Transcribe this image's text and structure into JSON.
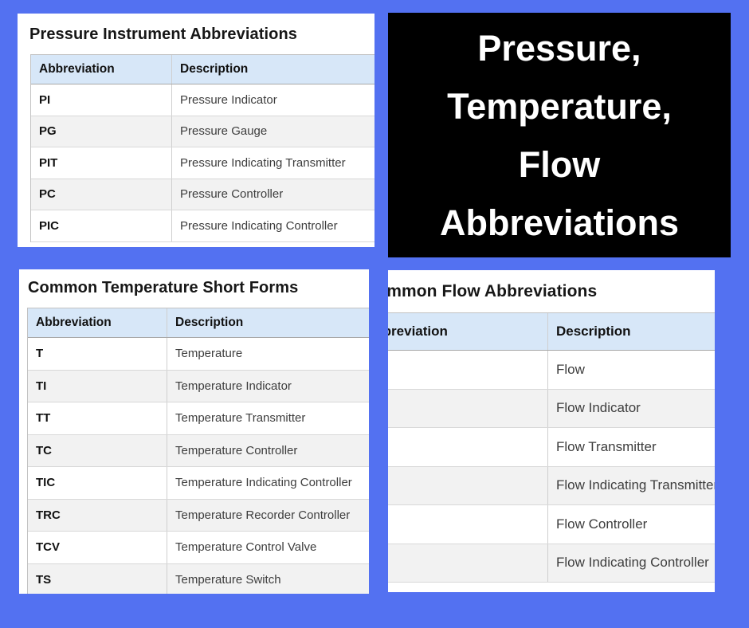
{
  "page": {
    "background_color": "#5371f1"
  },
  "title_card": {
    "background_color": "#000000",
    "text_color": "#ffffff",
    "lines": [
      "Pressure,",
      "Temperature,",
      "Flow",
      "Abbreviations"
    ]
  },
  "pressure_table": {
    "title": "Pressure Instrument Abbreviations",
    "columns": [
      "Abbreviation",
      "Description"
    ],
    "rows": [
      [
        "PI",
        "Pressure Indicator"
      ],
      [
        "PG",
        "Pressure Gauge"
      ],
      [
        "PIT",
        "Pressure Indicating Transmitter"
      ],
      [
        "PC",
        "Pressure Controller"
      ],
      [
        "PIC",
        "Pressure Indicating Controller"
      ]
    ]
  },
  "temperature_table": {
    "title": "Common Temperature Short Forms",
    "columns": [
      "Abbreviation",
      "Description"
    ],
    "rows": [
      [
        "T",
        "Temperature"
      ],
      [
        "TI",
        "Temperature Indicator"
      ],
      [
        "TT",
        "Temperature Transmitter"
      ],
      [
        "TC",
        "Temperature Controller"
      ],
      [
        "TIC",
        "Temperature Indicating Controller"
      ],
      [
        "TRC",
        "Temperature Recorder Controller"
      ],
      [
        "TCV",
        "Temperature Control Valve"
      ],
      [
        "TS",
        "Temperature Switch"
      ]
    ]
  },
  "flow_table": {
    "title": "Common Flow Abbreviations",
    "columns": [
      "Abbreviation",
      "Description"
    ],
    "rows": [
      [
        "",
        "Flow"
      ],
      [
        "",
        "Flow Indicator"
      ],
      [
        "",
        "Flow Transmitter"
      ],
      [
        "",
        "Flow Indicating Transmitter"
      ],
      [
        "",
        "Flow Controller"
      ],
      [
        "",
        "Flow Indicating Controller"
      ]
    ]
  },
  "colors": {
    "table_header_bg": "#d7e7f8",
    "row_alternate_bg": "#f2f2f2",
    "card_bg": "#ffffff"
  }
}
